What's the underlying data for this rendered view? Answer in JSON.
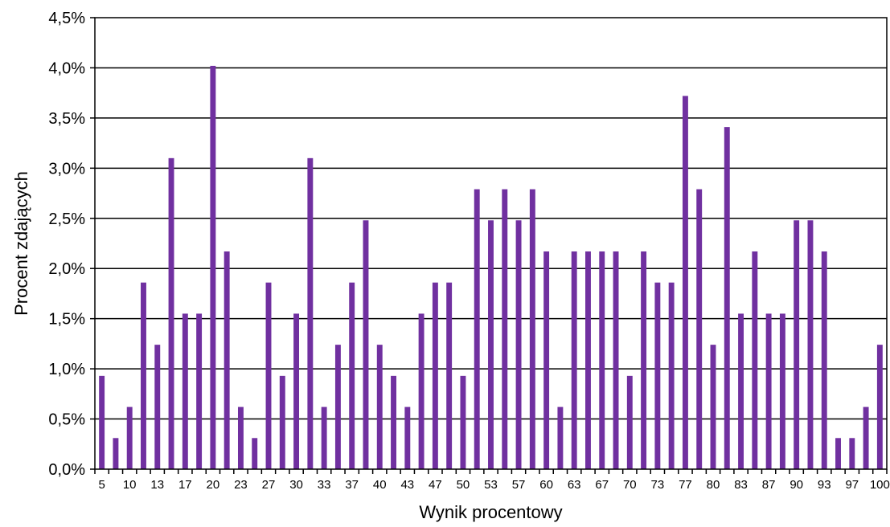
{
  "chart_data": {
    "type": "bar",
    "title": "",
    "xlabel": "Wynik procentowy",
    "ylabel": "Procent zdających",
    "ylim": [
      0,
      4.5
    ],
    "y_ticks": [
      "0,0%",
      "0,5%",
      "1,0%",
      "1,5%",
      "2,0%",
      "2,5%",
      "3,0%",
      "3,5%",
      "4,0%",
      "4,5%"
    ],
    "grid": true,
    "bar_color": "#7030A0",
    "categories": [
      "5",
      "7",
      "10",
      "12",
      "13",
      "15",
      "17",
      "18",
      "20",
      "22",
      "23",
      "25",
      "27",
      "28",
      "30",
      "32",
      "33",
      "35",
      "37",
      "38",
      "40",
      "42",
      "43",
      "45",
      "47",
      "48",
      "50",
      "52",
      "53",
      "55",
      "57",
      "58",
      "60",
      "62",
      "63",
      "65",
      "67",
      "68",
      "70",
      "72",
      "73",
      "75",
      "77",
      "78",
      "80",
      "82",
      "83",
      "85",
      "87",
      "88",
      "90",
      "92",
      "93",
      "95",
      "97",
      "98",
      "100"
    ],
    "x_tick_labels": [
      "5",
      "",
      "10",
      "",
      "13",
      "",
      "17",
      "",
      "20",
      "",
      "23",
      "",
      "27",
      "",
      "30",
      "",
      "33",
      "",
      "37",
      "",
      "40",
      "",
      "43",
      "",
      "47",
      "",
      "50",
      "",
      "53",
      "",
      "57",
      "",
      "60",
      "",
      "63",
      "",
      "67",
      "",
      "70",
      "",
      "73",
      "",
      "77",
      "",
      "80",
      "",
      "83",
      "",
      "87",
      "",
      "90",
      "",
      "93",
      "",
      "97",
      "",
      "100"
    ],
    "values": [
      0.93,
      0.31,
      0.62,
      1.86,
      1.24,
      3.1,
      1.55,
      1.55,
      4.02,
      2.17,
      0.62,
      0.31,
      1.86,
      0.93,
      1.55,
      3.1,
      0.62,
      1.24,
      1.86,
      2.48,
      1.24,
      0.93,
      0.62,
      1.55,
      1.86,
      1.86,
      0.93,
      2.79,
      2.48,
      2.79,
      2.48,
      2.79,
      2.17,
      0.62,
      2.17,
      2.17,
      2.17,
      2.17,
      0.93,
      2.17,
      1.86,
      1.86,
      3.72,
      2.79,
      1.24,
      3.41,
      1.55,
      2.17,
      1.55,
      1.55,
      2.48,
      2.48,
      2.17,
      0.31,
      0.31,
      0.62,
      1.24
    ]
  }
}
